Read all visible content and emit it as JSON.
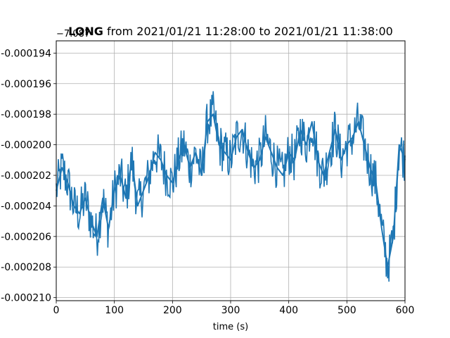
{
  "chart_data": {
    "type": "line",
    "title_bold": "LONG",
    "title_rest": " from 2021/01/21 11:28:00 to 2021/01/21 11:38:00",
    "xlabel": "time (s)",
    "ylabel": "",
    "y_offset_label": "−7.087",
    "xlim": [
      0,
      600
    ],
    "ylim": [
      -0.0002102,
      -0.0001932
    ],
    "x_ticks": [
      0,
      100,
      200,
      300,
      400,
      500,
      600
    ],
    "y_ticks": [
      -0.000194,
      -0.000196,
      -0.000198,
      -0.0002,
      -0.000202,
      -0.000204,
      -0.000206,
      -0.000208,
      -0.00021
    ],
    "y_tick_labels": [
      "-0.000194",
      "-0.000196",
      "-0.000198",
      "-0.000200",
      "-0.000202",
      "-0.000204",
      "-0.000206",
      "-0.000208",
      "-0.000210"
    ],
    "grid": true,
    "color": "#1f77b4",
    "series": [
      {
        "x": [
          0,
          10,
          20,
          30,
          40,
          50,
          60,
          70,
          80,
          90,
          100,
          110,
          120,
          130,
          140,
          150,
          160,
          170,
          180,
          190,
          200,
          210,
          220,
          230,
          240,
          250,
          260,
          270,
          280,
          290,
          300,
          310,
          320,
          330,
          340,
          350,
          360,
          370,
          380,
          390,
          400,
          410,
          420,
          430,
          440,
          450,
          460,
          470,
          480,
          490,
          500,
          510,
          520,
          530,
          540,
          550,
          560,
          570,
          580,
          590,
          600
        ],
        "y": [
          -0.000203,
          -0.0002015,
          -0.0002025,
          -0.000204,
          -0.0002045,
          -0.0002035,
          -0.000205,
          -0.000206,
          -0.0002035,
          -0.0002055,
          -0.000203,
          -0.000202,
          -0.0002035,
          -0.000201,
          -0.000204,
          -0.000203,
          -0.000202,
          -0.0002005,
          -0.000201,
          -0.000202,
          -0.0002025,
          -0.000201,
          -0.0002,
          -0.0002015,
          -0.0002005,
          -0.000202,
          -0.0001985,
          -0.000198,
          -0.0002,
          -0.0002005,
          -0.000201,
          -0.0001995,
          -0.000199,
          -0.0002005,
          -0.0002015,
          -0.000201,
          -0.0001995,
          -0.0002005,
          -0.0002015,
          -0.000202,
          -0.0002005,
          -0.000201,
          -0.000199,
          -0.0002,
          -0.0001985,
          -0.000201,
          -0.000202,
          -0.0002005,
          -0.000199,
          -0.000201,
          -0.0002,
          -0.0001995,
          -0.0001985,
          -0.0002,
          -0.0002015,
          -0.0002025,
          -0.0002055,
          -0.000208,
          -0.000206,
          -0.0002,
          -0.000201
        ]
      }
    ]
  }
}
